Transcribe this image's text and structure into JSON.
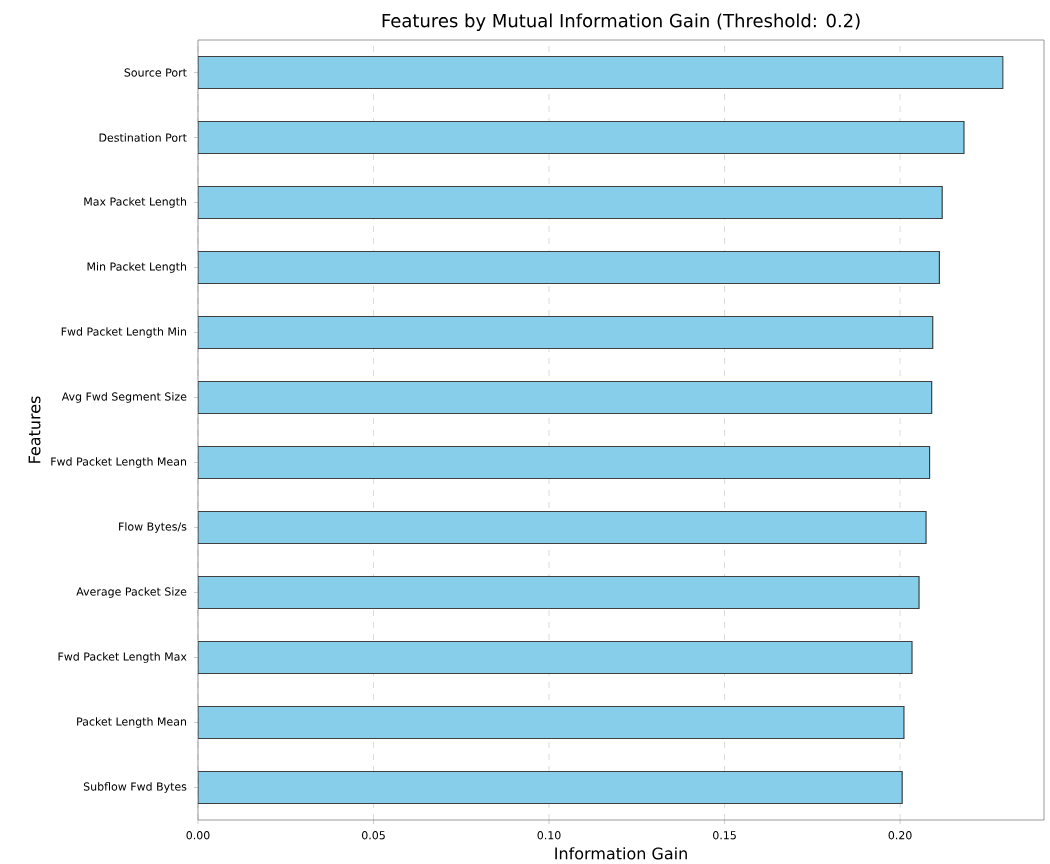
{
  "chart_data": {
    "type": "bar",
    "orientation": "horizontal",
    "title": "Features by Mutual Information Gain (Threshold: 0.2)",
    "xlabel": "Information Gain",
    "ylabel": "Features",
    "categories": [
      "Source Port",
      "Destination Port",
      "Max Packet Length",
      "Min Packet Length",
      "Fwd Packet Length Min",
      "Avg Fwd Segment Size",
      "Fwd Packet Length Mean",
      "Flow Bytes/s",
      "Average Packet Size",
      "Fwd Packet Length Max",
      "Packet Length Mean",
      "Subflow Fwd Bytes"
    ],
    "values": [
      0.2293,
      0.2182,
      0.212,
      0.2112,
      0.2093,
      0.209,
      0.2084,
      0.2074,
      0.2054,
      0.2034,
      0.2011,
      0.2006
    ],
    "color": "#87ceeb",
    "xlim": [
      0,
      0.241
    ],
    "xticks": [
      {
        "value": 0,
        "label": "0.00"
      },
      {
        "value": 0.05,
        "label": "0.05"
      },
      {
        "value": 0.1,
        "label": "0.10"
      },
      {
        "value": 0.15,
        "label": "0.15"
      },
      {
        "value": 0.2,
        "label": "0.20"
      }
    ],
    "grid": "x"
  }
}
